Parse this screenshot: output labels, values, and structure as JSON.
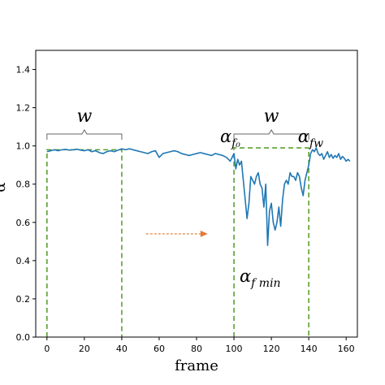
{
  "chart_data": {
    "type": "line",
    "title": "",
    "xlabel": "frame",
    "ylabel": "α",
    "xlim": [
      -6,
      166
    ],
    "ylim": [
      0.0,
      1.5
    ],
    "xticks": [
      0,
      20,
      40,
      60,
      80,
      100,
      120,
      140,
      160
    ],
    "yticks": [
      0.0,
      0.2,
      0.4,
      0.6,
      0.8,
      1.0,
      1.2,
      1.4
    ],
    "xtick_labels": [
      "0",
      "20",
      "40",
      "60",
      "80",
      "100",
      "120",
      "140",
      "160"
    ],
    "ytick_labels": [
      "0.0",
      "0.2",
      "0.4",
      "0.6",
      "0.8",
      "1.0",
      "1.2",
      "1.4"
    ],
    "grid": false,
    "series": [
      {
        "color": "#1f77b4",
        "x": [
          0,
          2,
          4,
          6,
          8,
          10,
          12,
          14,
          16,
          18,
          20,
          22,
          24,
          26,
          28,
          30,
          32,
          34,
          36,
          38,
          40,
          42,
          44,
          46,
          48,
          50,
          52,
          54,
          56,
          58,
          60,
          62,
          64,
          66,
          68,
          70,
          72,
          74,
          76,
          78,
          80,
          82,
          84,
          86,
          88,
          90,
          92,
          94,
          96,
          98,
          100,
          101,
          102,
          103,
          104,
          105,
          106,
          107,
          108,
          109,
          110,
          111,
          112,
          113,
          114,
          115,
          116,
          117,
          118,
          119,
          120,
          121,
          122,
          123,
          124,
          125,
          126,
          127,
          128,
          129,
          130,
          131,
          132,
          133,
          134,
          135,
          136,
          137,
          138,
          139,
          140,
          141,
          142,
          143,
          144,
          145,
          146,
          147,
          148,
          149,
          150,
          151,
          152,
          153,
          154,
          155,
          156,
          157,
          158,
          159,
          160,
          161,
          162
        ],
        "y": [
          0.97,
          0.975,
          0.98,
          0.975,
          0.98,
          0.982,
          0.978,
          0.98,
          0.983,
          0.978,
          0.975,
          0.98,
          0.97,
          0.975,
          0.965,
          0.96,
          0.97,
          0.975,
          0.97,
          0.978,
          0.985,
          0.98,
          0.985,
          0.98,
          0.975,
          0.97,
          0.965,
          0.96,
          0.97,
          0.975,
          0.94,
          0.96,
          0.965,
          0.97,
          0.975,
          0.97,
          0.96,
          0.955,
          0.95,
          0.955,
          0.96,
          0.965,
          0.96,
          0.955,
          0.95,
          0.96,
          0.955,
          0.95,
          0.94,
          0.92,
          0.96,
          0.88,
          0.93,
          0.9,
          0.92,
          0.82,
          0.72,
          0.62,
          0.7,
          0.84,
          0.82,
          0.8,
          0.84,
          0.86,
          0.8,
          0.78,
          0.68,
          0.8,
          0.48,
          0.66,
          0.7,
          0.6,
          0.56,
          0.6,
          0.68,
          0.58,
          0.72,
          0.8,
          0.82,
          0.8,
          0.86,
          0.84,
          0.84,
          0.82,
          0.86,
          0.84,
          0.78,
          0.74,
          0.82,
          0.86,
          0.9,
          0.96,
          0.98,
          0.97,
          0.99,
          0.96,
          0.95,
          0.96,
          0.93,
          0.95,
          0.97,
          0.94,
          0.955,
          0.935,
          0.95,
          0.94,
          0.96,
          0.93,
          0.945,
          0.935,
          0.92,
          0.93,
          0.92
        ]
      }
    ],
    "rectangles": [
      {
        "x0": 0,
        "x1": 40,
        "y_top": 0.98,
        "color": "#5aa02c"
      },
      {
        "x0": 100,
        "x1": 140,
        "y_top": 0.99,
        "color": "#5aa02c"
      }
    ],
    "brackets": [
      {
        "x0": 0,
        "x1": 40,
        "label": "w"
      },
      {
        "x0": 100,
        "x1": 140,
        "label": "w"
      }
    ],
    "arrow": {
      "x0": 53,
      "x1": 86,
      "y": 0.54,
      "color": "#e07b39"
    },
    "annotations": [
      {
        "name": "alpha-f0",
        "text": "α",
        "subscript": "f₀",
        "x": 98,
        "y": 1.02
      },
      {
        "name": "alpha-fw",
        "text": "α",
        "subscript": "fw",
        "x": 141,
        "y": 1.02
      },
      {
        "name": "alpha-fmin",
        "text": "α",
        "subscript": "f min",
        "x": 114,
        "y": 0.29
      }
    ]
  }
}
